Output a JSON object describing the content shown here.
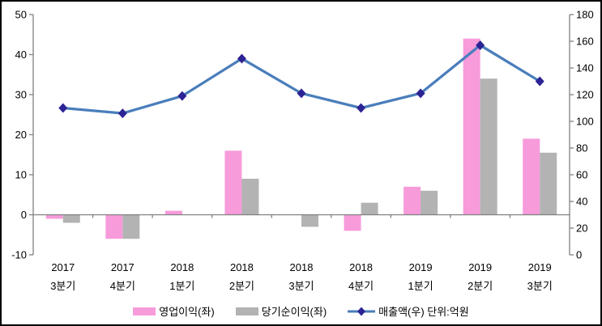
{
  "chart_data": {
    "type": "bar",
    "subtype": "combo-bar-line",
    "title": "",
    "categories": [
      [
        "2017",
        "3분기"
      ],
      [
        "2017",
        "4분기"
      ],
      [
        "2018",
        "1분기"
      ],
      [
        "2018",
        "2분기"
      ],
      [
        "2018",
        "3분기"
      ],
      [
        "2018",
        "4분기"
      ],
      [
        "2019",
        "1분기"
      ],
      [
        "2019",
        "2분기"
      ],
      [
        "2019",
        "3분기"
      ]
    ],
    "series": [
      {
        "name": "영업이익(좌)",
        "type": "bar",
        "axis": "left",
        "color": "#F79BDB",
        "values": [
          -1,
          -6,
          1,
          16,
          0,
          -4,
          7,
          44,
          19
        ]
      },
      {
        "name": "당기순이익(좌)",
        "type": "bar",
        "axis": "left",
        "color": "#B3B3B3",
        "values": [
          -2,
          -6,
          0,
          9,
          -3,
          3,
          6,
          34,
          15.5
        ]
      },
      {
        "name": "매출액(우) 단위:억원",
        "type": "line",
        "axis": "right",
        "color": "#4A7EBB",
        "marker": "diamond",
        "marker_color": "#2C2394",
        "values": [
          110,
          106,
          119,
          147,
          121,
          110,
          121,
          157,
          130
        ]
      }
    ],
    "left_axis": {
      "min": -10,
      "max": 50,
      "ticks": [
        50,
        40,
        30,
        20,
        10,
        0,
        -10
      ]
    },
    "right_axis": {
      "min": 0,
      "max": 180,
      "ticks": [
        180,
        160,
        140,
        120,
        100,
        80,
        60,
        40,
        20,
        0
      ]
    },
    "legend_position": "bottom",
    "grid": false,
    "axis_color": "#808080",
    "text_color": "#000000",
    "background": "#FFFFFF"
  }
}
